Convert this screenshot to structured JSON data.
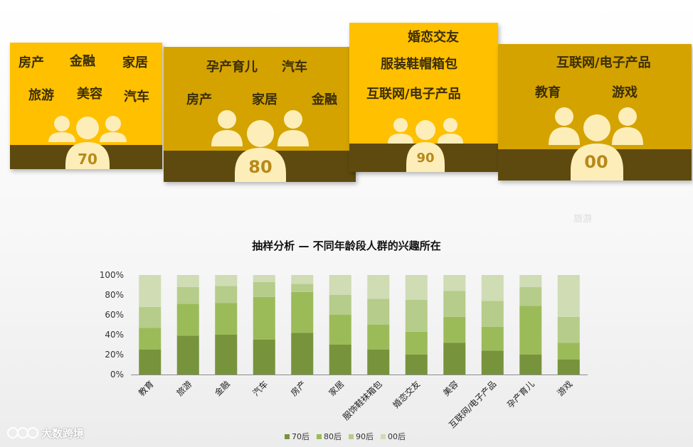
{
  "cards": [
    {
      "keywords": [
        "房产",
        "金融",
        "家居",
        "旅游",
        "美容",
        "汽车"
      ],
      "generation": "70"
    },
    {
      "keywords": [
        "孕产育儿",
        "汽车",
        "房产",
        "家居",
        "金融"
      ],
      "generation": "80"
    },
    {
      "keywords": [
        "婚恋交友",
        "服装鞋帽箱包",
        "互联网/电子产品"
      ],
      "generation": "90"
    },
    {
      "keywords": [
        "互联网/电子产品",
        "教育",
        "游戏"
      ],
      "generation": "00"
    }
  ],
  "ghost_text": "旅游",
  "watermark": "大数跨境",
  "colors": {
    "card_yellow": "#ffc000",
    "card_mustard": "#d4a300",
    "card_band": "#5e4a0f",
    "person": "#fdeeb9",
    "series": [
      "#77933c",
      "#9bbb59",
      "#b6cc8a",
      "#cfdcb4"
    ]
  },
  "chart_data": {
    "type": "bar",
    "stacked": true,
    "percent": true,
    "title": "抽样分析 — 不同年龄段人群的兴趣所在",
    "categories": [
      "教育",
      "旅游",
      "金融",
      "汽车",
      "房产",
      "家居",
      "服饰鞋袜箱包",
      "婚恋交友",
      "美容",
      "互联网/电子产品",
      "孕产育儿",
      "游戏"
    ],
    "series": [
      {
        "name": "70后",
        "values": [
          25,
          39,
          40,
          35,
          42,
          30,
          25,
          20,
          32,
          24,
          20,
          15
        ]
      },
      {
        "name": "80后",
        "values": [
          22,
          32,
          32,
          43,
          41,
          30,
          25,
          23,
          26,
          24,
          49,
          17
        ]
      },
      {
        "name": "90后",
        "values": [
          21,
          17,
          17,
          15,
          8,
          20,
          26,
          32,
          26,
          26,
          19,
          26
        ]
      },
      {
        "name": "00后",
        "values": [
          32,
          12,
          11,
          7,
          9,
          20,
          24,
          25,
          16,
          26,
          12,
          42
        ]
      }
    ],
    "yticks": [
      "0%",
      "20%",
      "40%",
      "60%",
      "80%",
      "100%"
    ],
    "ylim": [
      0,
      100
    ],
    "legend_position": "bottom"
  }
}
